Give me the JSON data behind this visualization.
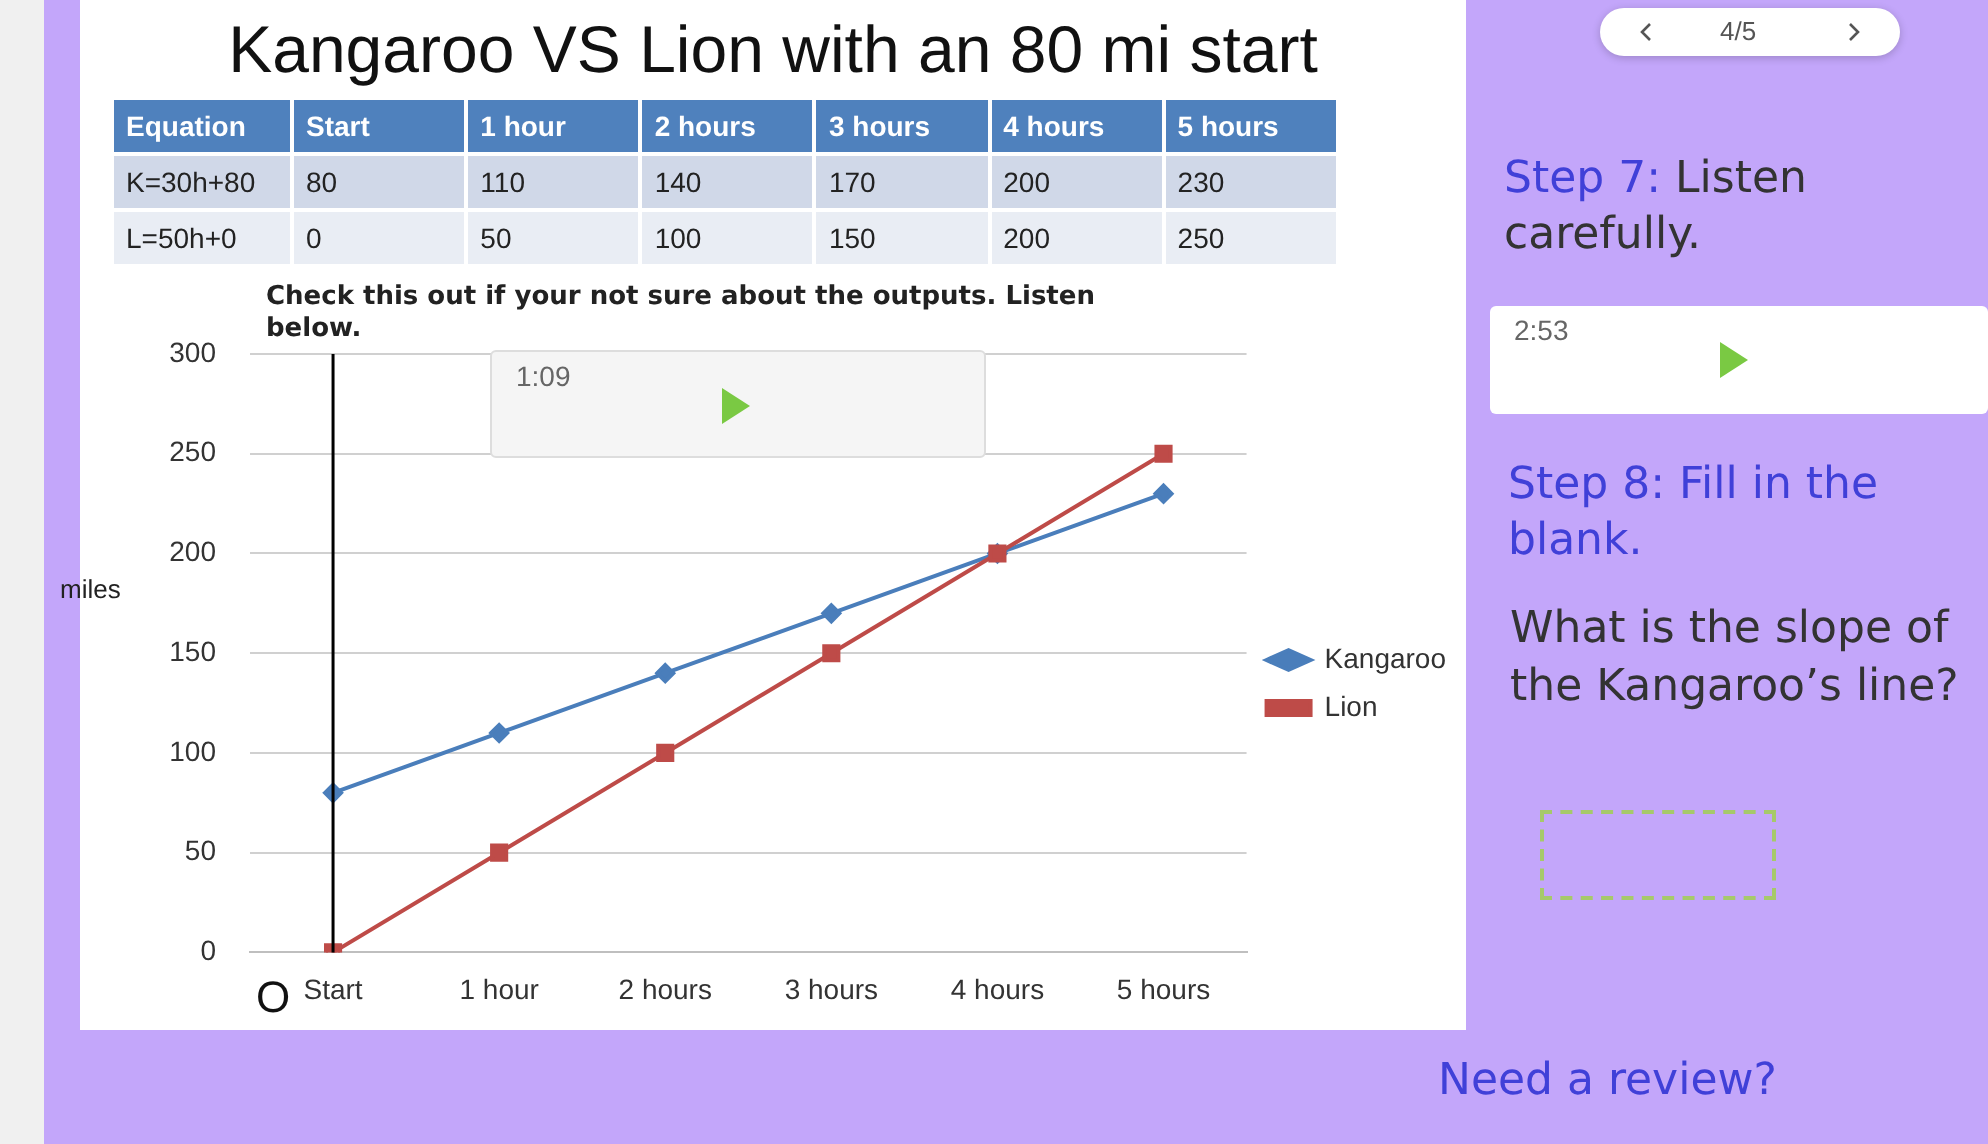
{
  "chart_data": {
    "type": "line",
    "title": "Kangaroo VS Lion with an 80 mi start",
    "ylabel": "miles",
    "categories": [
      "Start",
      "1 hour",
      "2 hours",
      "3 hours",
      "4 hours",
      "5 hours"
    ],
    "series": [
      {
        "name": "Kangaroo",
        "color": "#4a7ebb",
        "marker": "diamond",
        "values": [
          80,
          110,
          140,
          170,
          200,
          230
        ]
      },
      {
        "name": "Lion",
        "color": "#be4b48",
        "marker": "square",
        "values": [
          0,
          50,
          100,
          150,
          200,
          250
        ]
      }
    ],
    "ylim": [
      0,
      300
    ],
    "yticks": [
      0,
      50,
      100,
      150,
      200,
      250,
      300
    ],
    "grid": "y",
    "legend": "right",
    "ref_lines": [
      {
        "axis": "x",
        "value": "Start",
        "color": "#000000"
      }
    ],
    "annotations": [
      "Equation",
      "K=30h+80",
      "80",
      "110",
      "140",
      "170",
      "200",
      "230",
      "L=50h+0",
      "0",
      "50",
      "100",
      "150",
      "200",
      "250",
      "Check this out if your not sure about the outputs. Listen below.",
      "1:09",
      "O",
      "4/5",
      "Step 7:",
      "Listen carefully.",
      "2:53",
      "Step 8: Fill in the blank.",
      "What is the slope of the Kangaroo’s line?",
      "Need a review?"
    ]
  }
}
